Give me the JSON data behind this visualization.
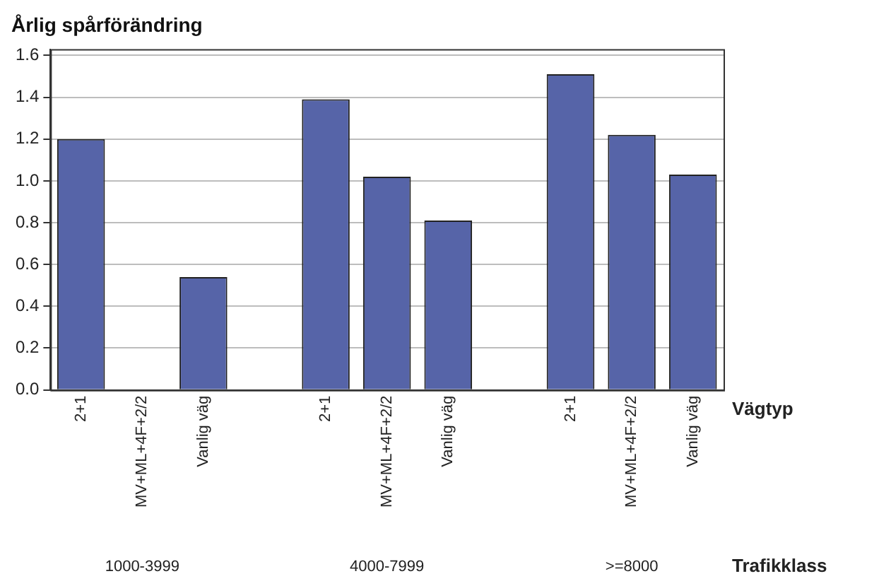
{
  "chart_data": {
    "type": "bar",
    "title": "Årlig spårförändring",
    "xlabel": "Vägtyp",
    "categories": [
      "2+1",
      "MV+ML+4F+2/2",
      "Vanlig väg",
      null,
      "2+1",
      "MV+ML+4F+2/2",
      "Vanlig väg",
      null,
      "2+1",
      "MV+ML+4F+2/2",
      "Vanlig väg"
    ],
    "values": [
      1.2,
      null,
      0.54,
      null,
      1.39,
      1.02,
      0.81,
      null,
      1.51,
      1.22,
      1.03
    ],
    "color": "#5664a8",
    "annotations": [
      "1000-3999",
      "4000-7999",
      ">=8000",
      "Trafikklass"
    ],
    "ylim": [
      0,
      1.63
    ],
    "yticks": [
      {
        "value": 0,
        "label": "0.0"
      },
      0.2,
      0.4,
      0.6,
      0.8,
      {
        "value": 1,
        "label": "1.0"
      },
      1.2,
      1.4,
      1.6
    ],
    "grid": "y",
    "legend": false
  }
}
